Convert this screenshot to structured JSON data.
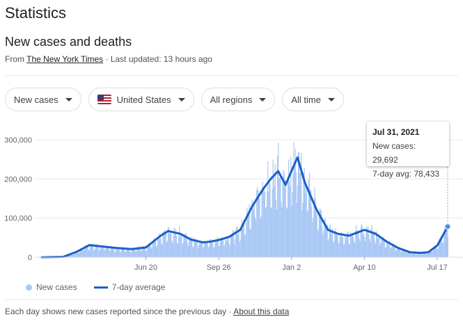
{
  "header": {
    "title": "Statistics",
    "subtitle": "New cases and deaths",
    "source_prefix": "From ",
    "source_link": "The New York Times",
    "updated": " · Last updated: 13 hours ago"
  },
  "filters": [
    {
      "label": "New cases"
    },
    {
      "label": "United States"
    },
    {
      "label": "All regions"
    },
    {
      "label": "All time"
    }
  ],
  "tooltip": {
    "date": "Jul 31, 2021",
    "new_cases": "New cases: 29,692",
    "avg": "7-day avg: 78,433"
  },
  "legend": {
    "new_cases": "New cases",
    "avg": "7-day average"
  },
  "footer": {
    "text": "Each day shows new cases reported since the previous day",
    "sep": " · ",
    "link": "About this data"
  },
  "colors": {
    "bars": "#aac8f5",
    "line": "#1a5fc8"
  },
  "chart_data": {
    "type": "area",
    "ylim": [
      0,
      300000
    ],
    "y_ticks": [
      "300,000",
      "200,000",
      "100,000",
      "0"
    ],
    "x_ticks": [
      "Jun 20",
      "Sep 26",
      "Jan 2",
      "Apr 10",
      "Jul 17"
    ],
    "series": [
      {
        "name": "7-day average",
        "points": [
          [
            "2020-02-01",
            0
          ],
          [
            "2020-03-01",
            1000
          ],
          [
            "2020-03-20",
            15000
          ],
          [
            "2020-04-05",
            31000
          ],
          [
            "2020-04-20",
            28000
          ],
          [
            "2020-05-10",
            24000
          ],
          [
            "2020-06-01",
            21000
          ],
          [
            "2020-06-20",
            25000
          ],
          [
            "2020-07-10",
            55000
          ],
          [
            "2020-07-20",
            67000
          ],
          [
            "2020-08-05",
            60000
          ],
          [
            "2020-08-20",
            45000
          ],
          [
            "2020-09-05",
            38000
          ],
          [
            "2020-09-15",
            40000
          ],
          [
            "2020-09-26",
            44000
          ],
          [
            "2020-10-10",
            52000
          ],
          [
            "2020-10-25",
            70000
          ],
          [
            "2020-11-10",
            130000
          ],
          [
            "2020-11-25",
            175000
          ],
          [
            "2020-12-05",
            200000
          ],
          [
            "2020-12-15",
            220000
          ],
          [
            "2020-12-25",
            185000
          ],
          [
            "2021-01-03",
            225000
          ],
          [
            "2021-01-10",
            255000
          ],
          [
            "2021-01-20",
            190000
          ],
          [
            "2021-02-05",
            120000
          ],
          [
            "2021-02-20",
            70000
          ],
          [
            "2021-03-05",
            60000
          ],
          [
            "2021-03-20",
            55000
          ],
          [
            "2021-04-10",
            70000
          ],
          [
            "2021-04-25",
            60000
          ],
          [
            "2021-05-10",
            40000
          ],
          [
            "2021-05-25",
            24000
          ],
          [
            "2021-06-10",
            13000
          ],
          [
            "2021-06-25",
            11000
          ],
          [
            "2021-07-05",
            13000
          ],
          [
            "2021-07-17",
            30000
          ],
          [
            "2021-07-31",
            78433
          ]
        ]
      },
      {
        "name": "New cases",
        "points": [
          [
            "2021-07-31",
            29692
          ]
        ]
      }
    ]
  }
}
